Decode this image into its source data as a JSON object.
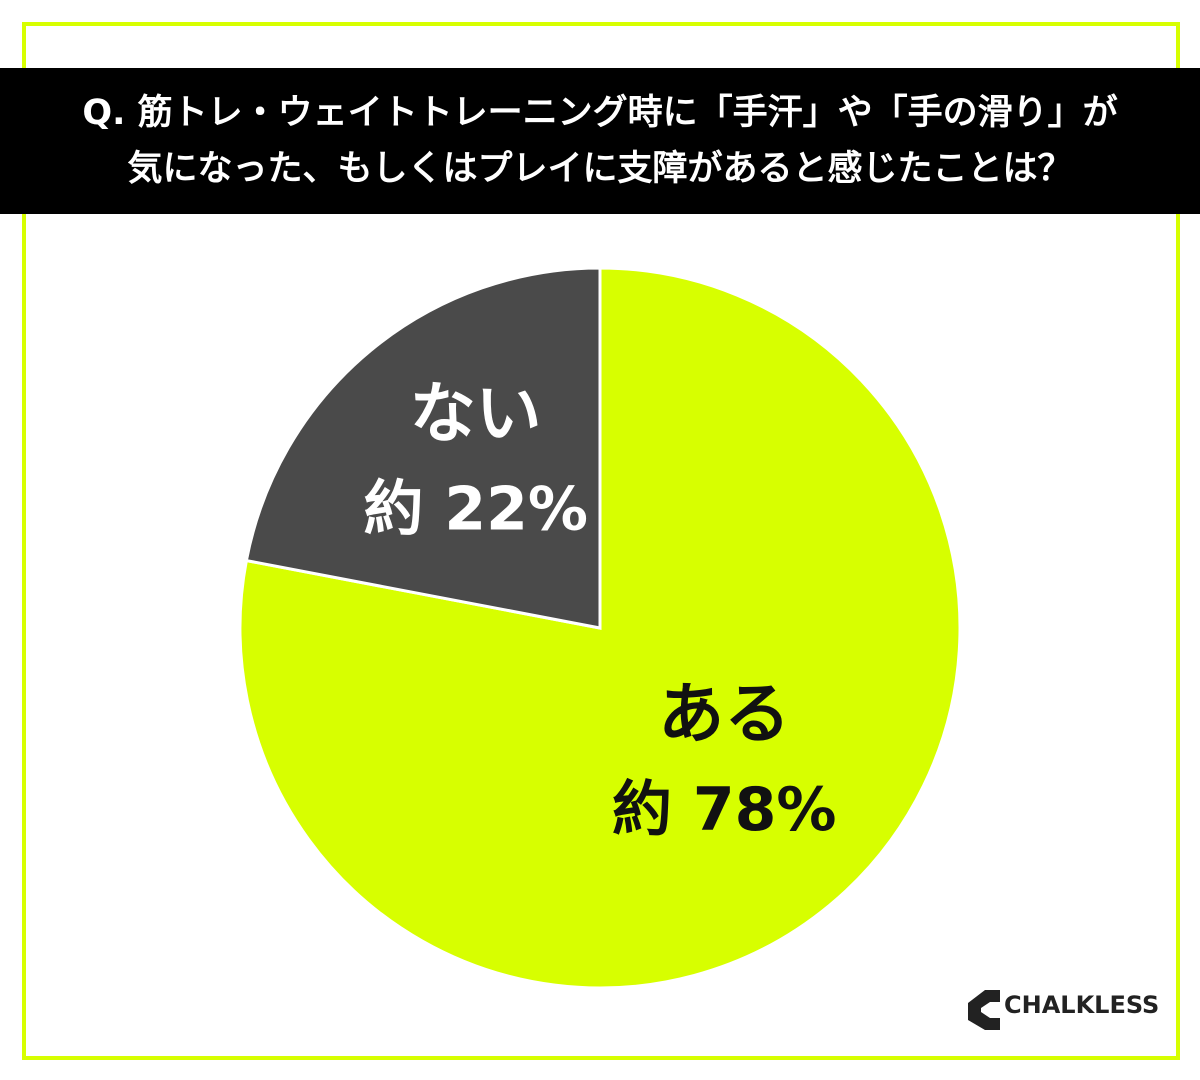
{
  "chart_data": {
    "type": "pie",
    "title": "Q. 筋トレ・ウェイトトレーニング時に「手汗」や「手の滑り」が\n気になった、もしくはプレイに支障があると感じたことは？",
    "categories": [
      "ある",
      "ない"
    ],
    "values": [
      78,
      22
    ],
    "value_labels": [
      "約 78%",
      "約 22%"
    ],
    "colors": [
      "#d7ff00",
      "#4a4a4a"
    ],
    "brand": "CHALKLESS"
  }
}
